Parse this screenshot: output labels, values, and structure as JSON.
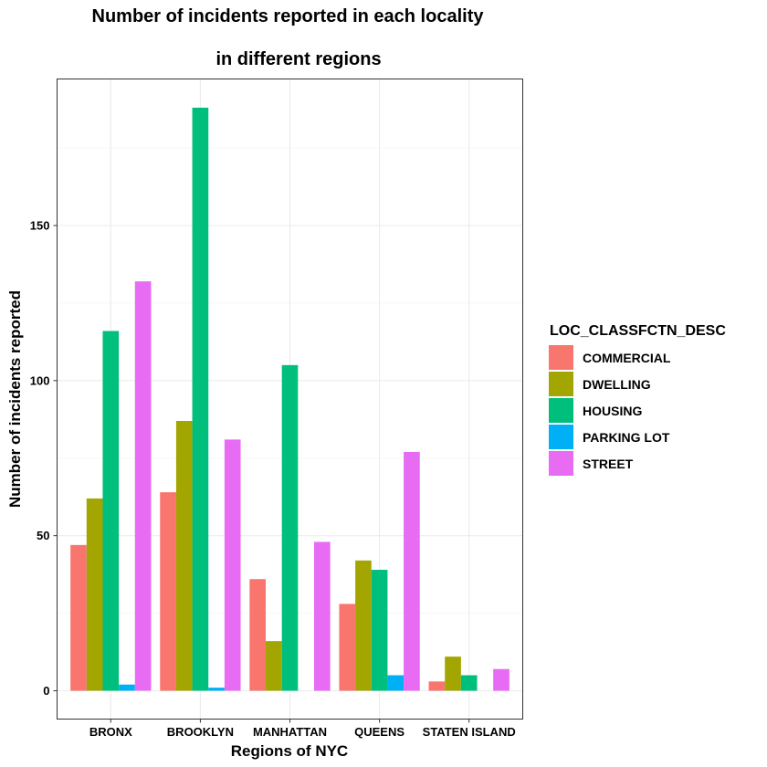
{
  "chart_data": {
    "type": "bar",
    "title_line1": "Number of incidents reported in each locality",
    "title_line2": "in different regions",
    "xlabel": "Regions of NYC",
    "ylabel": "Number of incidents reported",
    "categories": [
      "BRONX",
      "BROOKLYN",
      "MANHATTAN",
      "QUEENS",
      "STATEN ISLAND"
    ],
    "yticks": [
      0,
      50,
      100,
      150
    ],
    "ylim": [
      -9,
      190
    ],
    "grid": true,
    "legend_position": "right",
    "legend_title": "LOC_CLASSFCTN_DESC",
    "series": [
      {
        "name": "COMMERCIAL",
        "color": "#F8766D",
        "values": [
          47,
          64,
          36,
          28,
          3
        ]
      },
      {
        "name": "DWELLING",
        "color": "#A3A500",
        "values": [
          62,
          87,
          16,
          42,
          11
        ]
      },
      {
        "name": "HOUSING",
        "color": "#00BF7D",
        "values": [
          116,
          188,
          105,
          39,
          5
        ]
      },
      {
        "name": "PARKING LOT",
        "color": "#00B0F6",
        "values": [
          2,
          1,
          null,
          5,
          null
        ]
      },
      {
        "name": "STREET",
        "color": "#E76BF3",
        "values": [
          132,
          81,
          48,
          77,
          7
        ]
      }
    ]
  }
}
